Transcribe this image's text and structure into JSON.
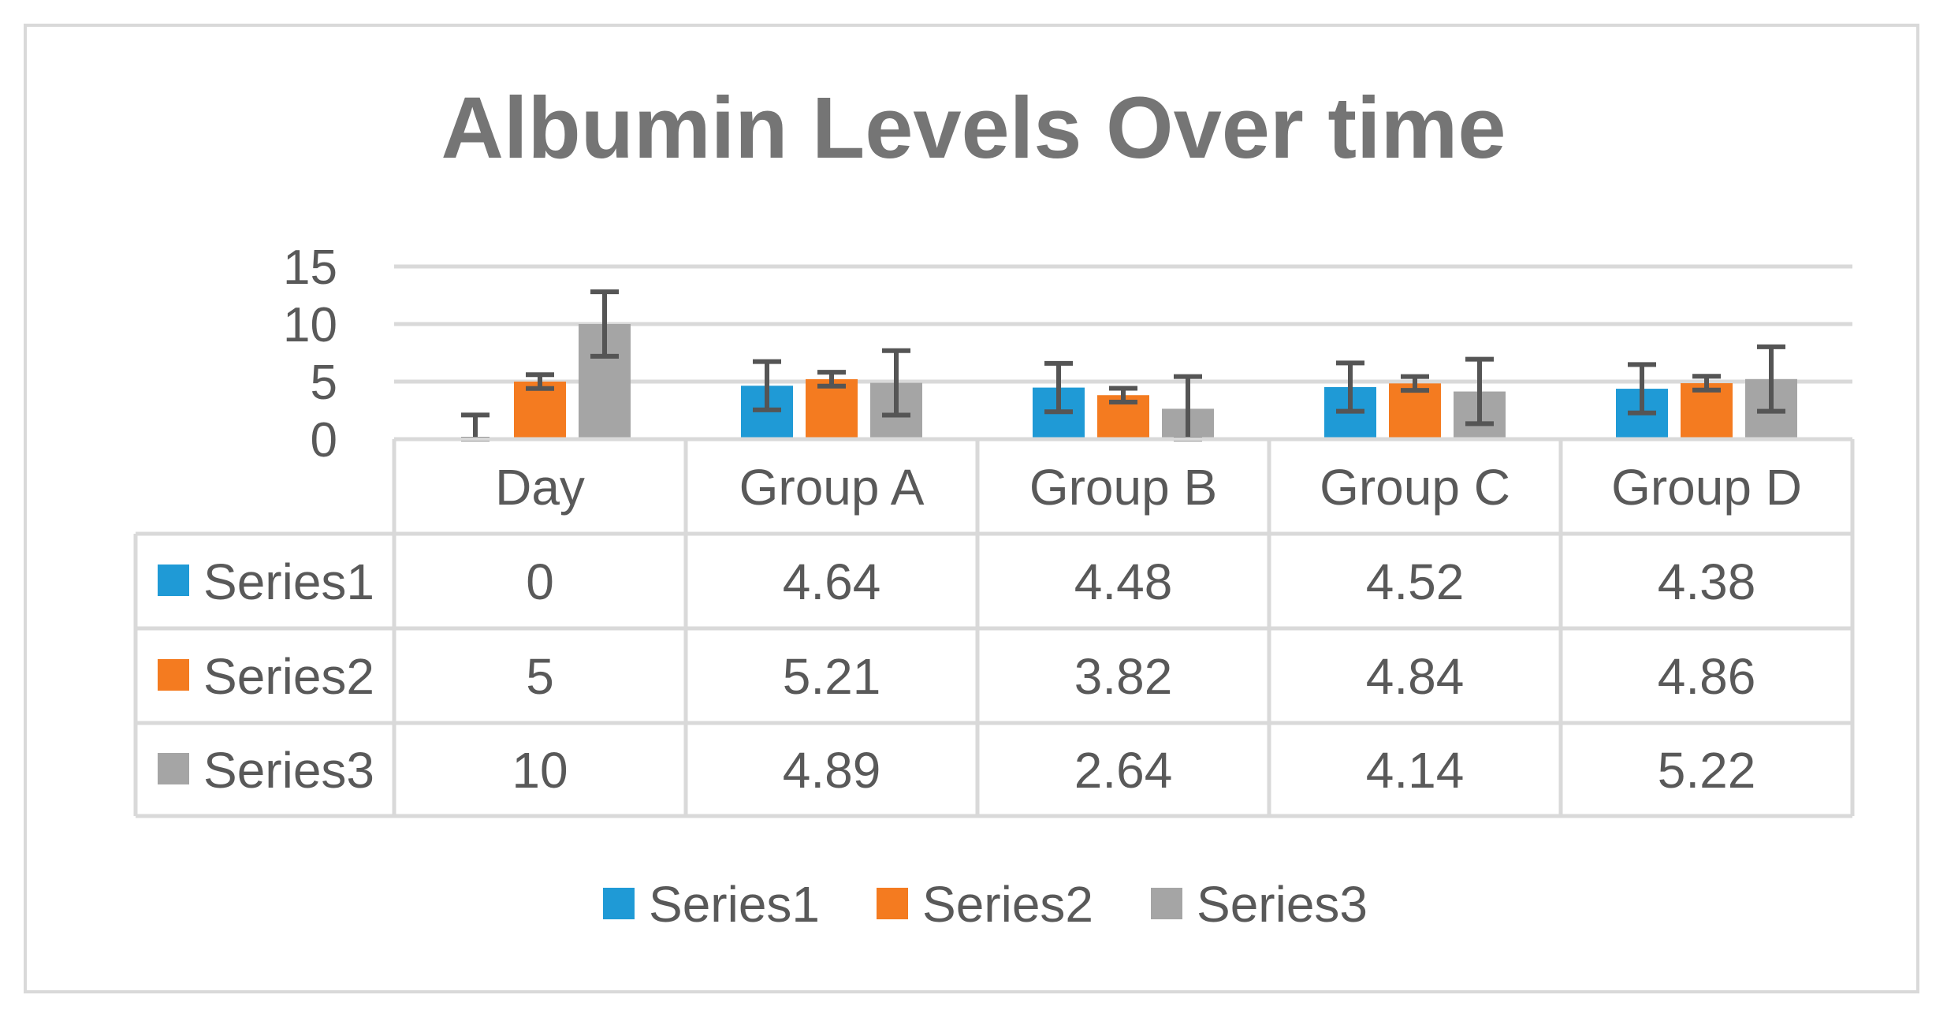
{
  "chart_data": {
    "type": "bar",
    "title": "Albumin Levels Over time",
    "categories": [
      "Day",
      "Group A",
      "Group B",
      "Group C",
      "Group D"
    ],
    "yticks": [
      "0",
      "5",
      "10",
      "15"
    ],
    "ylim": [
      0,
      15
    ],
    "grid": true,
    "legend_position": "bottom",
    "data_table": true,
    "series": [
      {
        "name": "Series1",
        "color": "#1f9ad6",
        "values": [
          0,
          4.64,
          4.48,
          4.52,
          4.38
        ],
        "labels": [
          "0",
          "4.64",
          "4.48",
          "4.52",
          "4.38"
        ],
        "error": [
          2.1,
          2.1,
          2.1,
          2.1,
          2.1
        ]
      },
      {
        "name": "Series2",
        "color": "#f47b20",
        "values": [
          5,
          5.21,
          3.82,
          4.84,
          4.86
        ],
        "labels": [
          "5",
          "5.21",
          "3.82",
          "4.84",
          "4.86"
        ],
        "error": [
          0.6,
          0.6,
          0.6,
          0.6,
          0.6
        ]
      },
      {
        "name": "Series3",
        "color": "#a5a5a5",
        "values": [
          10,
          4.89,
          2.64,
          4.14,
          5.22
        ],
        "labels": [
          "10",
          "4.89",
          "2.64",
          "4.14",
          "5.22"
        ],
        "error": [
          2.8,
          2.8,
          2.8,
          2.8,
          2.8
        ]
      }
    ]
  }
}
